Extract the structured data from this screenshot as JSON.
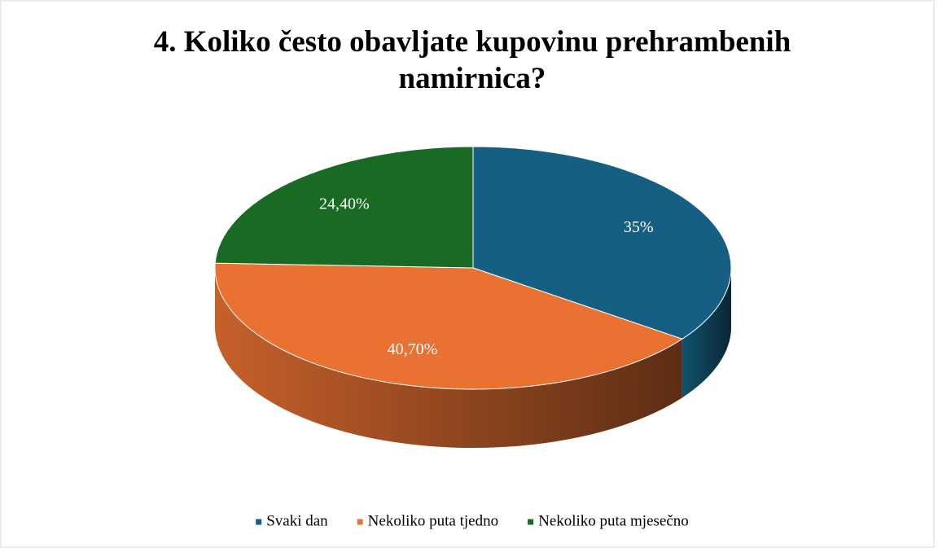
{
  "chart_data": {
    "type": "pie",
    "title": "4. Koliko često obavljate kupovinu prehrambenih namirnica?",
    "categories": [
      "Svaki dan",
      "Nekoliko puta tjedno",
      "Nekoliko puta mjesečno"
    ],
    "values": [
      35,
      40.7,
      24.4
    ],
    "value_labels": [
      "35%",
      "40,70%",
      "24,40%"
    ],
    "colors": [
      "#156082",
      "#e97132",
      "#196b24"
    ],
    "legend": "bottom"
  }
}
